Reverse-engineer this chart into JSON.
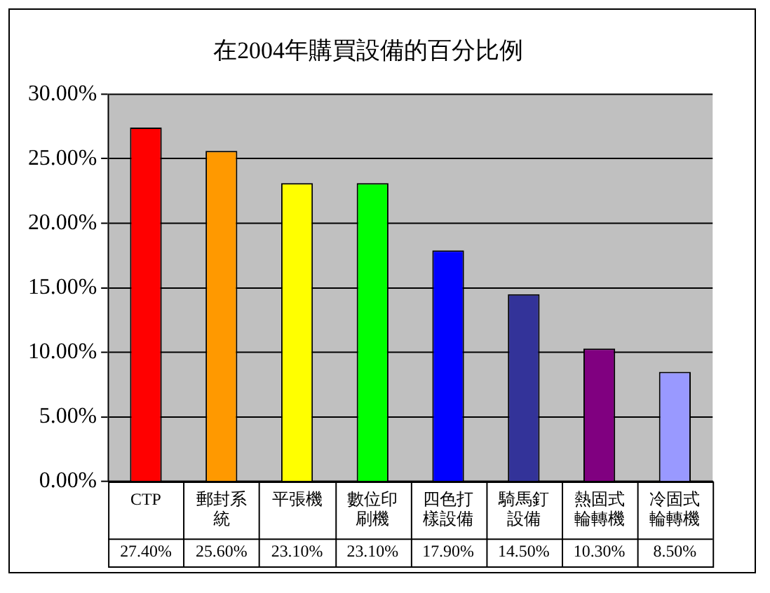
{
  "chart_data": {
    "type": "bar",
    "title": "在2004年購買設備的百分比例",
    "categories": [
      "CTP",
      "郵封系統",
      "平張機",
      "數位印刷機",
      "四色打樣設備",
      "騎馬釘設備",
      "熱固式輪轉機",
      "冷固式輪轉機"
    ],
    "values": [
      27.4,
      25.6,
      23.1,
      23.1,
      17.9,
      14.5,
      10.3,
      8.5
    ],
    "value_labels": [
      "27.40%",
      "25.60%",
      "23.10%",
      "23.10%",
      "17.90%",
      "14.50%",
      "10.30%",
      "8.50%"
    ],
    "colors": [
      "#ff0000",
      "#ff9900",
      "#ffff00",
      "#00ff00",
      "#0000ff",
      "#333399",
      "#800080",
      "#9999ff"
    ],
    "ylim": [
      0,
      30
    ],
    "yticks": [
      {
        "value": 0,
        "label": "0.00%"
      },
      {
        "value": 5,
        "label": "5.00%"
      },
      {
        "value": 10,
        "label": "10.00%"
      },
      {
        "value": 15,
        "label": "15.00%"
      },
      {
        "value": 20,
        "label": "20.00%"
      },
      {
        "value": 25,
        "label": "25.00%"
      },
      {
        "value": 30,
        "label": "30.00%"
      }
    ],
    "grid": "y",
    "legend": false
  }
}
